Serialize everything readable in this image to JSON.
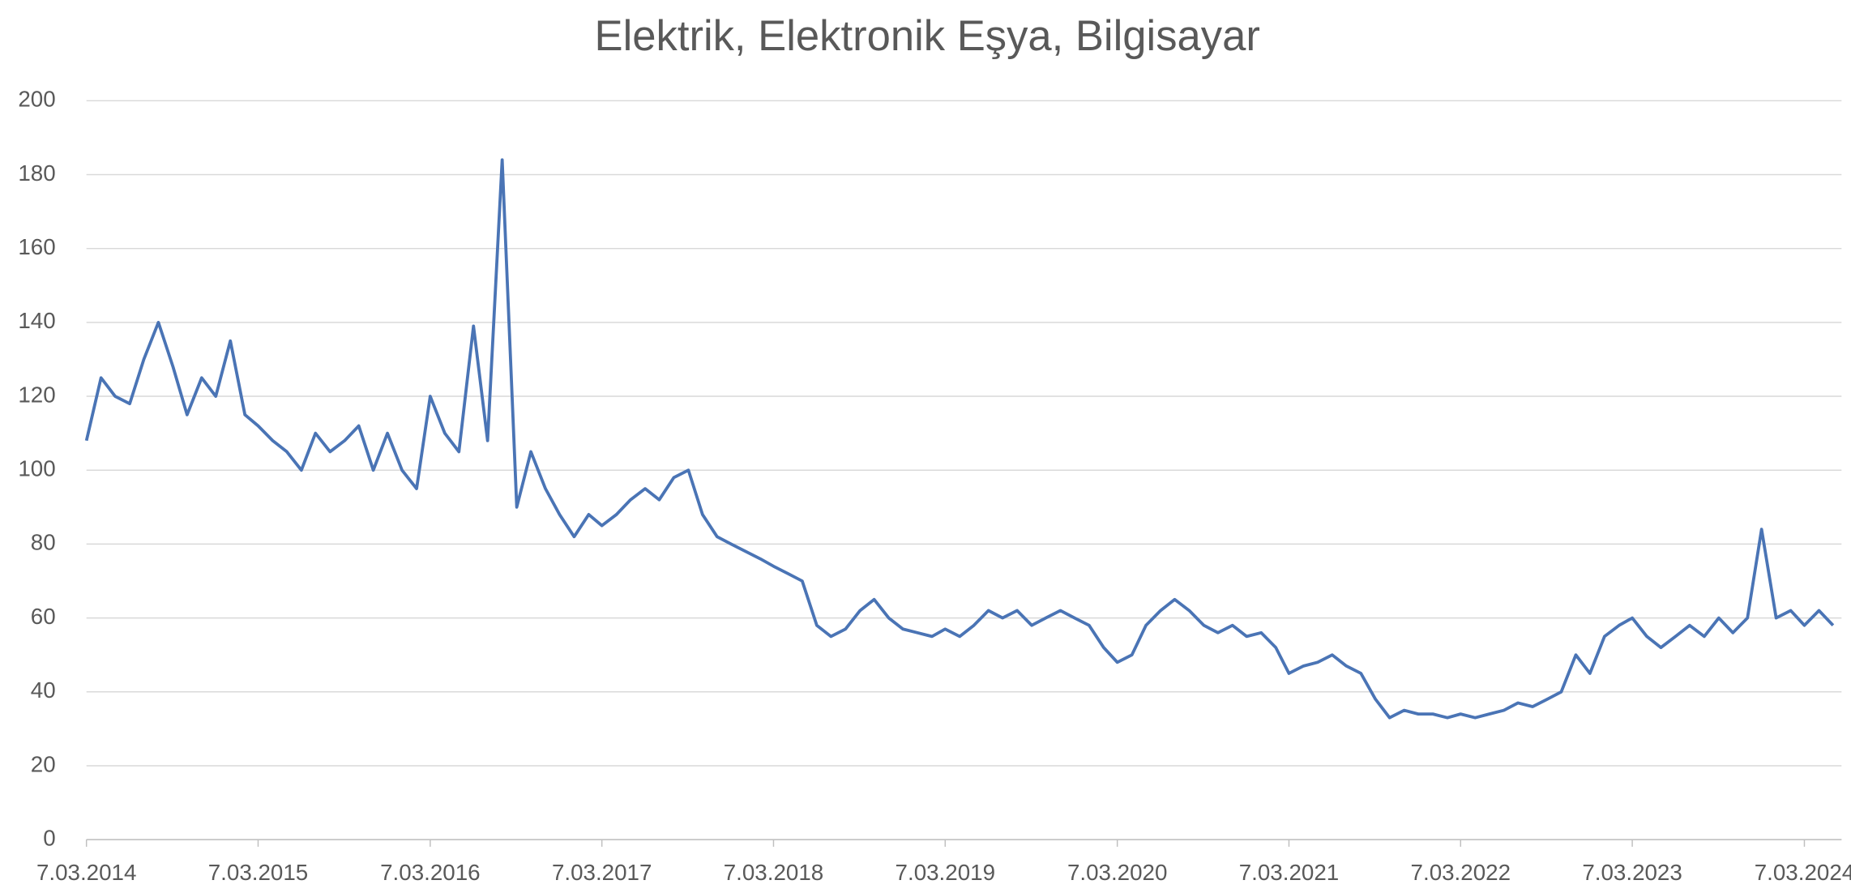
{
  "chart_data": {
    "type": "line",
    "title": "Elektrik, Elektronik Eşya, Bilgisayar",
    "x": [
      "7.03.2014",
      "7.04.2014",
      "7.05.2014",
      "7.06.2014",
      "7.07.2014",
      "7.08.2014",
      "7.09.2014",
      "7.10.2014",
      "7.11.2014",
      "7.12.2014",
      "7.01.2015",
      "7.02.2015",
      "7.03.2015",
      "7.04.2015",
      "7.05.2015",
      "7.06.2015",
      "7.07.2015",
      "7.08.2015",
      "7.09.2015",
      "7.10.2015",
      "7.11.2015",
      "7.12.2015",
      "7.01.2016",
      "7.02.2016",
      "7.03.2016",
      "7.04.2016",
      "7.05.2016",
      "7.06.2016",
      "7.07.2016",
      "7.08.2016",
      "7.09.2016",
      "7.10.2016",
      "7.11.2016",
      "7.12.2016",
      "7.01.2017",
      "7.02.2017",
      "7.03.2017",
      "7.04.2017",
      "7.05.2017",
      "7.06.2017",
      "7.07.2017",
      "7.08.2017",
      "7.09.2017",
      "7.10.2017",
      "7.11.2017",
      "7.12.2017",
      "7.01.2018",
      "7.02.2018",
      "7.03.2018",
      "7.04.2018",
      "7.05.2018",
      "7.06.2018",
      "7.07.2018",
      "7.08.2018",
      "7.09.2018",
      "7.10.2018",
      "7.11.2018",
      "7.12.2018",
      "7.01.2019",
      "7.02.2019",
      "7.03.2019",
      "7.04.2019",
      "7.05.2019",
      "7.06.2019",
      "7.07.2019",
      "7.08.2019",
      "7.09.2019",
      "7.10.2019",
      "7.11.2019",
      "7.12.2019",
      "7.01.2020",
      "7.02.2020",
      "7.03.2020",
      "7.04.2020",
      "7.05.2020",
      "7.06.2020",
      "7.07.2020",
      "7.08.2020",
      "7.09.2020",
      "7.10.2020",
      "7.11.2020",
      "7.12.2020",
      "7.01.2021",
      "7.02.2021",
      "7.03.2021",
      "7.04.2021",
      "7.05.2021",
      "7.06.2021",
      "7.07.2021",
      "7.08.2021",
      "7.09.2021",
      "7.10.2021",
      "7.11.2021",
      "7.12.2021",
      "7.01.2022",
      "7.02.2022",
      "7.03.2022",
      "7.04.2022",
      "7.05.2022",
      "7.06.2022",
      "7.07.2022",
      "7.08.2022",
      "7.09.2022",
      "7.10.2022",
      "7.11.2022",
      "7.12.2022",
      "7.01.2023",
      "7.02.2023",
      "7.03.2023",
      "7.04.2023",
      "7.05.2023",
      "7.06.2023",
      "7.07.2023",
      "7.08.2023",
      "7.09.2023",
      "7.10.2023",
      "7.11.2023",
      "7.12.2023",
      "7.01.2024",
      "7.02.2024",
      "7.03.2024",
      "7.04.2024",
      "7.05.2024"
    ],
    "series": [
      {
        "color": "#4a74b5",
        "values": [
          108,
          125,
          120,
          118,
          130,
          140,
          128,
          115,
          125,
          120,
          135,
          115,
          112,
          108,
          105,
          100,
          110,
          105,
          108,
          112,
          100,
          110,
          100,
          95,
          120,
          110,
          105,
          139,
          108,
          184,
          90,
          105,
          95,
          88,
          82,
          88,
          85,
          88,
          92,
          95,
          92,
          98,
          100,
          88,
          82,
          80,
          78,
          76,
          74,
          72,
          70,
          58,
          55,
          57,
          62,
          65,
          60,
          57,
          56,
          55,
          57,
          55,
          58,
          62,
          60,
          62,
          58,
          60,
          62,
          60,
          58,
          52,
          48,
          50,
          58,
          62,
          65,
          62,
          58,
          56,
          58,
          55,
          56,
          52,
          45,
          47,
          48,
          50,
          47,
          45,
          38,
          33,
          35,
          34,
          34,
          33,
          34,
          33,
          34,
          35,
          37,
          36,
          38,
          40,
          50,
          45,
          55,
          58,
          60,
          55,
          52,
          55,
          58,
          55,
          60,
          56,
          60,
          84,
          60,
          62,
          58,
          62,
          58
        ]
      }
    ],
    "xlim": [
      "7.03.2014",
      "25.05.2024"
    ],
    "xticks": [
      "7.03.2014",
      "7.03.2015",
      "7.03.2016",
      "7.03.2017",
      "7.03.2018",
      "7.03.2019",
      "7.03.2020",
      "7.03.2021",
      "7.03.2022",
      "7.03.2023",
      "7.03.2024"
    ],
    "ylim": [
      0,
      200
    ],
    "yticks": [
      0,
      20,
      40,
      60,
      80,
      100,
      120,
      140,
      160,
      180,
      200
    ],
    "grid": true
  }
}
